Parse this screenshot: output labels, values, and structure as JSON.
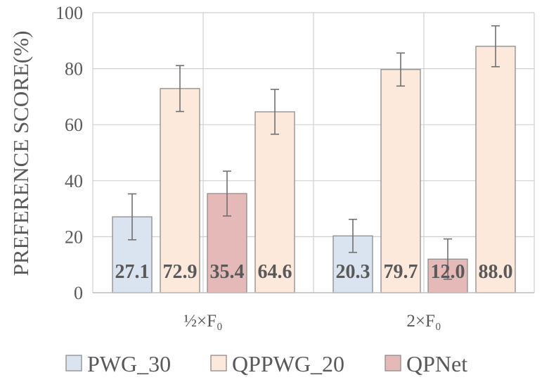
{
  "chart_data": {
    "type": "bar",
    "ylabel": "PREFERENCE SCORE(%)",
    "ylim": [
      0,
      100
    ],
    "yticks": [
      0,
      20,
      40,
      60,
      80,
      100
    ],
    "grid": true,
    "legend_position": "bottom",
    "groups": [
      {
        "label": "½×F₀",
        "bars": [
          {
            "series": "PWG_30",
            "value": 27.1,
            "err": 8.2,
            "label": "27.1"
          },
          {
            "series": "QPPWG_20",
            "value": 72.9,
            "err": 8.2,
            "label": "72.9"
          },
          {
            "series": "QPNet",
            "value": 35.4,
            "err": 8.0,
            "label": "35.4"
          },
          {
            "series": "QPPWG_20",
            "value": 64.6,
            "err": 8.0,
            "label": "64.6"
          }
        ]
      },
      {
        "label": "2×F₀",
        "bars": [
          {
            "series": "PWG_30",
            "value": 20.3,
            "err": 5.9,
            "label": "20.3"
          },
          {
            "series": "QPPWG_20",
            "value": 79.7,
            "err": 5.9,
            "label": "79.7"
          },
          {
            "series": "QPNet",
            "value": 12.0,
            "err": 7.2,
            "label": "12.0"
          },
          {
            "series": "QPPWG_20",
            "value": 88.0,
            "err": 7.3,
            "label": "88.0"
          }
        ]
      }
    ],
    "series": [
      {
        "name": "PWG_30",
        "color": "#dae3f0"
      },
      {
        "name": "QPPWG_20",
        "color": "#fde9db"
      },
      {
        "name": "QPNet",
        "color": "#e6b9b9"
      }
    ]
  }
}
